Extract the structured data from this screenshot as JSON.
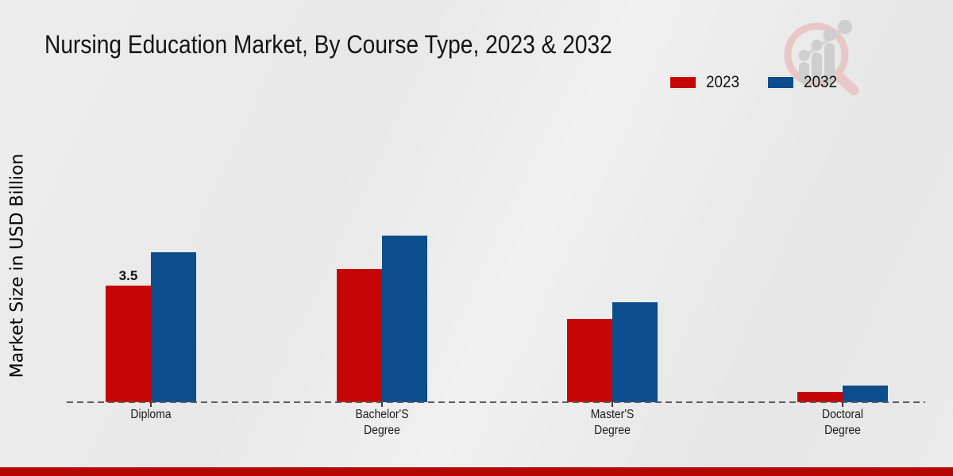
{
  "chart_data": {
    "type": "bar",
    "title": "Nursing Education Market, By Course Type, 2023 & 2032",
    "ylabel": "Market Size in USD Billion",
    "xlabel": "",
    "categories": [
      "Diploma",
      "Bachelor'S Degree",
      "Master'S Degree",
      "Doctoral Degree"
    ],
    "series": [
      {
        "name": "2023",
        "color": "#c60606",
        "values": [
          3.5,
          4.0,
          2.5,
          0.3
        ]
      },
      {
        "name": "2032",
        "color": "#0c4d8d",
        "values": [
          4.5,
          5.0,
          3.0,
          0.5
        ]
      }
    ],
    "annotations": [
      {
        "series_index": 0,
        "category_index": 0,
        "text": "3.5"
      }
    ],
    "ylim": [
      0,
      5.5
    ],
    "grid": false,
    "legend_position": "top-right",
    "baseline_style": "dashed",
    "axis_ticks_visible": true
  },
  "branding": {
    "logo_icon": "magnifier-bar-chart-watermark",
    "logo_ring_color": "#e9c6c6",
    "logo_bars_color": "#cdcdcd",
    "accent_bar_color": "#b70404"
  }
}
